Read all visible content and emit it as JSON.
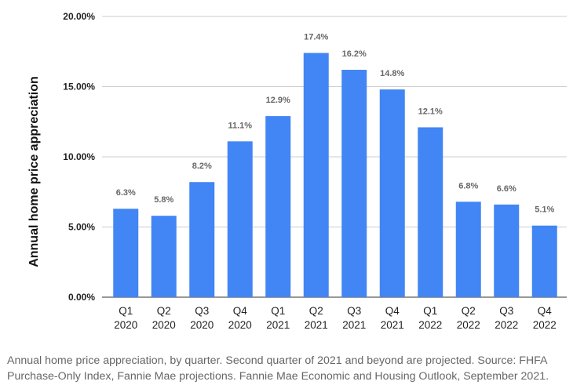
{
  "chart_data": {
    "type": "bar",
    "categories": [
      [
        "Q1",
        "2020"
      ],
      [
        "Q2",
        "2020"
      ],
      [
        "Q3",
        "2020"
      ],
      [
        "Q4",
        "2020"
      ],
      [
        "Q1",
        "2021"
      ],
      [
        "Q2",
        "2021"
      ],
      [
        "Q3",
        "2021"
      ],
      [
        "Q4",
        "2021"
      ],
      [
        "Q1",
        "2022"
      ],
      [
        "Q2",
        "2022"
      ],
      [
        "Q3",
        "2022"
      ],
      [
        "Q4",
        "2022"
      ]
    ],
    "values": [
      6.3,
      5.8,
      8.2,
      11.1,
      12.9,
      17.4,
      16.2,
      14.8,
      12.1,
      6.8,
      6.6,
      5.1
    ],
    "value_labels": [
      "6.3%",
      "5.8%",
      "8.2%",
      "11.1%",
      "12.9%",
      "17.4%",
      "16.2%",
      "14.8%",
      "12.1%",
      "6.8%",
      "6.6%",
      "5.1%"
    ],
    "ylabel": "Annual home price appreciation",
    "xlabel": "",
    "ylim": [
      0,
      20
    ],
    "yticks": [
      0,
      5,
      10,
      15,
      20
    ],
    "ytick_labels": [
      "0.00%",
      "5.00%",
      "10.00%",
      "15.00%",
      "20.00%"
    ],
    "grid": true,
    "bar_color": "#4285f4",
    "grid_color": "#cccccc"
  },
  "caption": "Annual home price appreciation, by quarter. Second quarter of 2021 and beyond are projected. Source: FHFA Purchase-Only Index, Fannie Mae projections. Fannie Mae Economic and Housing Outlook, September 2021."
}
